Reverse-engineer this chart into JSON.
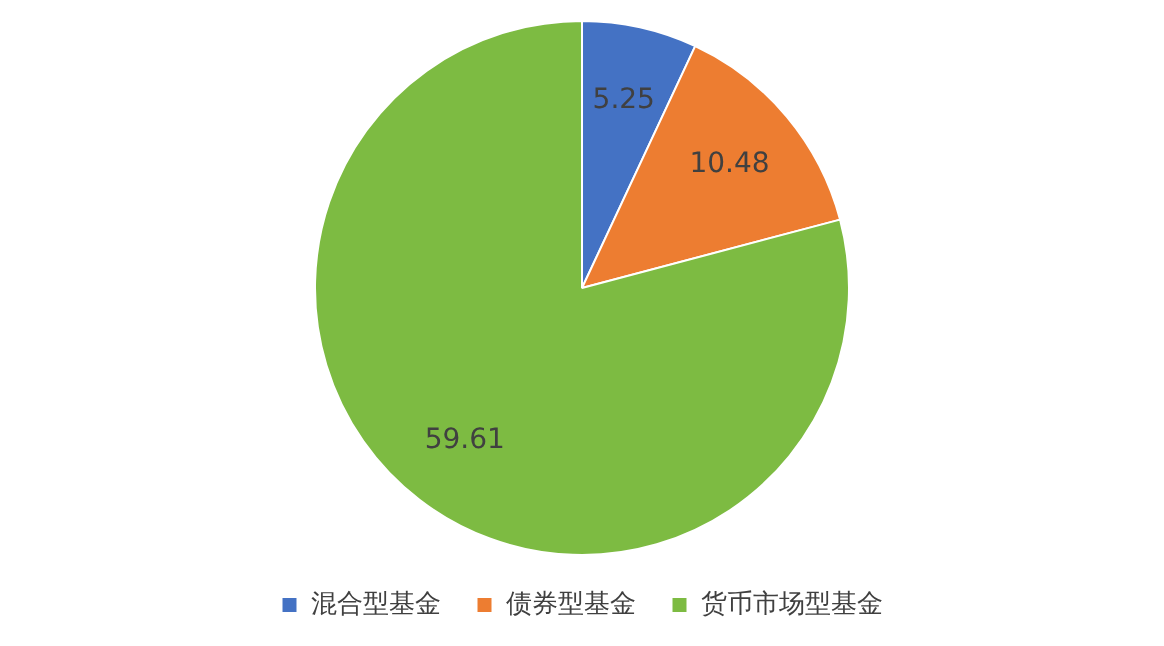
{
  "chart_data": {
    "type": "pie",
    "categories": [
      "混合型基金",
      "债券型基金",
      "货币市场型基金"
    ],
    "values": [
      5.25,
      10.48,
      59.61
    ],
    "colors": [
      "#4472c4",
      "#ed7d31",
      "#7dbb42"
    ],
    "data_labels": true,
    "legend": "bottom"
  }
}
